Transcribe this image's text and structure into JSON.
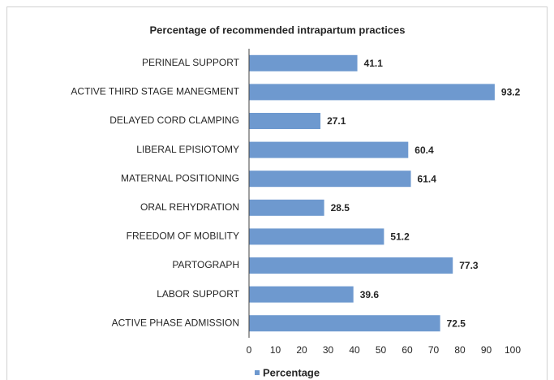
{
  "chart_data": {
    "type": "bar",
    "orientation": "horizontal",
    "title": "Percentage of recommended intrapartum practices",
    "categories": [
      "PERINEAL SUPPORT",
      "ACTIVE THIRD STAGE MANEGMENT",
      "DELAYED CORD CLAMPING",
      "LIBERAL EPISIOTOMY",
      "MATERNAL POSITIONING",
      "ORAL REHYDRATION",
      "FREEDOM OF MOBILITY",
      "PARTOGRAPH",
      "LABOR SUPPORT",
      "ACTIVE PHASE ADMISSION"
    ],
    "series": [
      {
        "name": "Percentage",
        "color": "#6e99cf",
        "values": [
          41.1,
          93.2,
          27.1,
          60.4,
          61.4,
          28.5,
          51.2,
          77.3,
          39.6,
          72.5
        ]
      }
    ],
    "xlim": [
      0,
      100
    ],
    "xticks": [
      0,
      10,
      20,
      30,
      40,
      50,
      60,
      70,
      80,
      90,
      100
    ],
    "legend": "bottom"
  }
}
